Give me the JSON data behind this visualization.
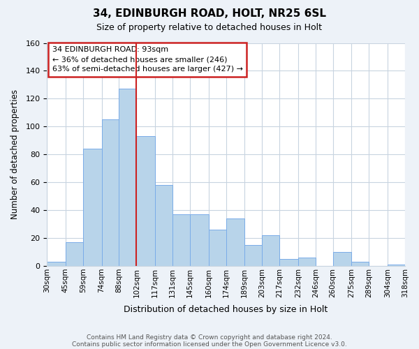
{
  "title1": "34, EDINBURGH ROAD, HOLT, NR25 6SL",
  "title2": "Size of property relative to detached houses in Holt",
  "xlabel": "Distribution of detached houses by size in Holt",
  "ylabel": "Number of detached properties",
  "bin_edges": [
    30,
    45,
    59,
    74,
    88,
    102,
    117,
    131,
    145,
    160,
    174,
    189,
    203,
    217,
    232,
    246,
    260,
    275,
    289,
    304,
    318
  ],
  "bar_values": [
    3,
    17,
    84,
    105,
    127,
    93,
    58,
    37,
    37,
    26,
    34,
    15,
    22,
    5,
    6,
    0,
    10,
    3,
    0,
    1
  ],
  "bar_color": "#b8d4ea",
  "bar_edge_color": "#7aace8",
  "highlight_color": "#cc2222",
  "vline_position": 102,
  "annotation_title": "34 EDINBURGH ROAD: 93sqm",
  "annotation_line1": "← 36% of detached houses are smaller (246)",
  "annotation_line2": "63% of semi-detached houses are larger (427) →",
  "annotation_box_color": "#ffffff",
  "annotation_box_edge": "#cc2222",
  "ylim": [
    0,
    160
  ],
  "yticks": [
    0,
    20,
    40,
    60,
    80,
    100,
    120,
    140,
    160
  ],
  "footer1": "Contains HM Land Registry data © Crown copyright and database right 2024.",
  "footer2": "Contains public sector information licensed under the Open Government Licence v3.0.",
  "bg_color": "#edf2f8",
  "plot_bg_color": "#ffffff",
  "grid_color": "#c8d4e0"
}
